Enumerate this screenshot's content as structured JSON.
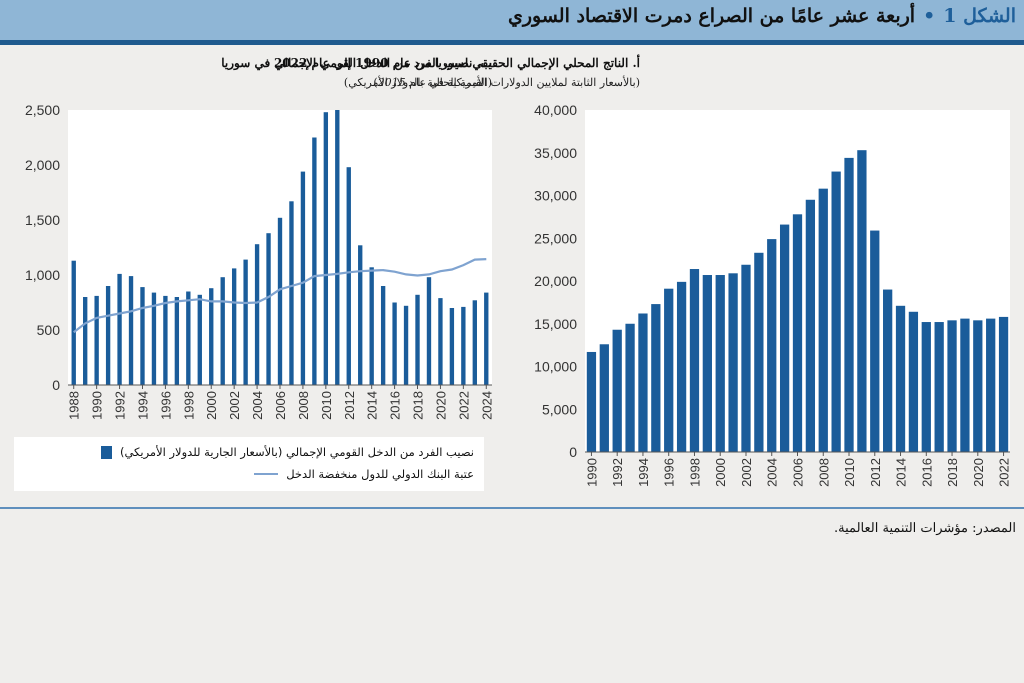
{
  "header": {
    "figure_label": "الشكل 1",
    "title": "أربعة عشر عامًا من الصراع دمرت الاقتصاد السوري"
  },
  "panel_a": {
    "title": "أ. الناتج المحلي الإجمالي الحقيقي لسوريا من عام 1990 إلى عام 2022",
    "subtitle_main": "(بالأسعار الثابتة لملايين الدولارات الأمريكية في عام ",
    "subtitle_year": "2015",
    "subtitle_end": ")"
  },
  "panel_b": {
    "title": "ب. نصيب الفرد من الدخل القومي الإجمالي في سوريا",
    "subtitle": "(القيمة الحالية بالدولار الأمريكي)"
  },
  "legend": {
    "bar_label": "نصيب الفرد من الدخل القومي الإجمالي (بالأسعار الجارية للدولار الأمريكي)",
    "line_label": "عتبة البنك الدولي للدول منخفضة الدخل"
  },
  "source": "المصدر: مؤشرات التنمية العالمية.",
  "colors": {
    "bar": "#1a5c9a",
    "line": "#7fa3d0",
    "header_bg": "#8fb6d6",
    "accent": "#1f5a8e"
  },
  "chart_data": [
    {
      "type": "bar",
      "title": "أ. الناتج المحلي الإجمالي الحقيقي لسوريا من عام 1990 إلى عام 2022",
      "ylim": [
        0,
        40000
      ],
      "yticks": [
        0,
        5000,
        10000,
        15000,
        20000,
        25000,
        30000,
        35000,
        40000
      ],
      "ytick_labels": [
        "0",
        "5,000",
        "10,000",
        "15,000",
        "20,000",
        "25,000",
        "30,000",
        "35,000",
        "40,000"
      ],
      "xtick_labels": [
        "1990",
        "1992",
        "1994",
        "1996",
        "1998",
        "2000",
        "2002",
        "2004",
        "2006",
        "2008",
        "2010",
        "2012",
        "2014",
        "2016",
        "2018",
        "2020",
        "2022"
      ],
      "categories": [
        1990,
        1991,
        1992,
        1993,
        1994,
        1995,
        1996,
        1997,
        1998,
        1999,
        2000,
        2001,
        2002,
        2003,
        2004,
        2005,
        2006,
        2007,
        2008,
        2009,
        2010,
        2011,
        2012,
        2013,
        2014,
        2015,
        2016,
        2017,
        2018,
        2019,
        2020,
        2021,
        2022
      ],
      "values": [
        11700,
        12600,
        14300,
        15000,
        16200,
        17300,
        19100,
        19900,
        21400,
        20700,
        20700,
        20900,
        21900,
        23300,
        24900,
        26600,
        27800,
        29500,
        30800,
        32800,
        34400,
        35300,
        25900,
        19000,
        17100,
        16400,
        15200,
        15200,
        15400,
        15600,
        15400,
        15600,
        15800
      ]
    },
    {
      "type": "bar",
      "title": "ب. نصيب الفرد من الدخل القومي الإجمالي في سوريا",
      "ylim": [
        0,
        2500
      ],
      "yticks": [
        0,
        500,
        1000,
        1500,
        2000,
        2500
      ],
      "ytick_labels": [
        "0",
        "500",
        "1,000",
        "1,500",
        "2,000",
        "2,500"
      ],
      "xtick_labels": [
        "1988",
        "1990",
        "1992",
        "1994",
        "1996",
        "1998",
        "2000",
        "2002",
        "2004",
        "2006",
        "2008",
        "2010",
        "2012",
        "2014",
        "2016",
        "2018",
        "2020",
        "2022",
        "2024"
      ],
      "categories": [
        1988,
        1989,
        1990,
        1991,
        1992,
        1993,
        1994,
        1995,
        1996,
        1997,
        1998,
        1999,
        2000,
        2001,
        2002,
        2003,
        2004,
        2005,
        2006,
        2007,
        2008,
        2009,
        2010,
        2011,
        2012,
        2013,
        2014,
        2015,
        2016,
        2017,
        2018,
        2019,
        2020,
        2021,
        2022,
        2023,
        2024
      ],
      "series": [
        {
          "name": "نصيب الفرد من الدخل القومي الإجمالي (بالأسعار الجارية للدولار الأمريكي)",
          "type": "bar",
          "values": [
            1130,
            800,
            810,
            900,
            1010,
            990,
            890,
            840,
            810,
            800,
            850,
            820,
            880,
            980,
            1060,
            1140,
            1280,
            1380,
            1520,
            1670,
            1940,
            2250,
            2480,
            2500,
            1980,
            1270,
            1070,
            900,
            750,
            720,
            820,
            980,
            790,
            700,
            710,
            770,
            840
          ]
        },
        {
          "name": "عتبة البنك الدولي للدول منخفضة الدخل",
          "type": "line",
          "values": [
            480,
            560,
            610,
            630,
            650,
            670,
            700,
            720,
            745,
            760,
            770,
            780,
            760,
            760,
            750,
            745,
            750,
            800,
            870,
            900,
            930,
            990,
            1000,
            1010,
            1025,
            1035,
            1040,
            1045,
            1030,
            1005,
            995,
            1005,
            1035,
            1050,
            1090,
            1140,
            1145
          ]
        }
      ]
    }
  ]
}
